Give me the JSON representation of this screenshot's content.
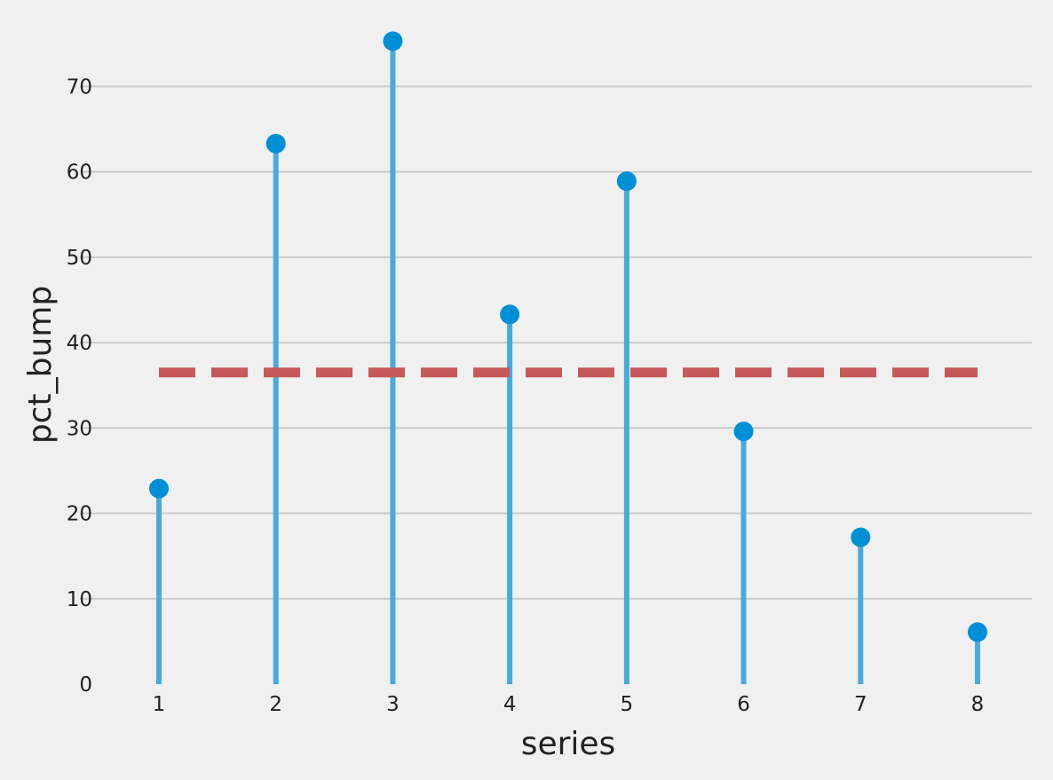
{
  "chart_data": {
    "type": "stem",
    "title": "",
    "xlabel": "series",
    "ylabel": "pct_bump",
    "x": [
      1,
      2,
      3,
      4,
      5,
      6,
      7,
      8
    ],
    "values": [
      22.9,
      63.3,
      75.3,
      43.3,
      58.9,
      29.6,
      17.2,
      6.1
    ],
    "mean_line": 36.5,
    "xlim": [
      0.6,
      9.0
    ],
    "ylim": [
      0,
      77
    ],
    "yticks": [
      0,
      10,
      20,
      30,
      40,
      50,
      60,
      70
    ],
    "xticks": [
      1,
      2,
      3,
      4,
      5,
      6,
      7,
      8
    ],
    "grid": "horizontal",
    "colors": {
      "stem": "#4aa9db",
      "marker": "#008fd5",
      "mean_line": "#c6585a",
      "grid": "#cbcbcb",
      "background": "#f0f0f0",
      "text": "#222222"
    }
  }
}
